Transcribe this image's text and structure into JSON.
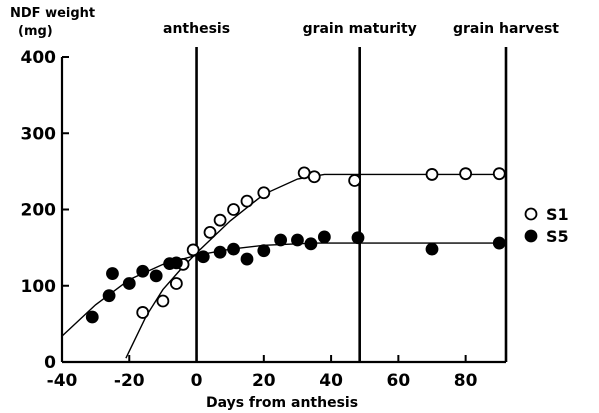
{
  "chart_data": {
    "type": "scatter",
    "ylabel_line1": "NDF weight",
    "ylabel_line2": "(mg)",
    "xlabel": "Days from anthesis",
    "xlim": [
      -40,
      92
    ],
    "ylim": [
      0,
      400
    ],
    "xticks": [
      {
        "value": -40,
        "label": "-40"
      },
      {
        "value": -20,
        "label": "-20"
      },
      {
        "value": 0,
        "label": "0"
      },
      {
        "value": 20,
        "label": "20"
      },
      {
        "value": 40,
        "label": "40"
      },
      {
        "value": 60,
        "label": "60"
      },
      {
        "value": 80,
        "label": "80"
      }
    ],
    "yticks": [
      {
        "value": 0,
        "label": "0"
      },
      {
        "value": 100,
        "label": "100"
      },
      {
        "value": 200,
        "label": "200"
      },
      {
        "value": 300,
        "label": "300"
      },
      {
        "value": 400,
        "label": "400"
      }
    ],
    "events": [
      {
        "x": 0,
        "label": "anthesis"
      },
      {
        "x": 48.5,
        "label": "grain maturity"
      },
      {
        "x": 92,
        "label": "grain harvest"
      }
    ],
    "series": [
      {
        "name": "S1",
        "marker": "open-circle",
        "points": [
          {
            "x": -16,
            "y": 65
          },
          {
            "x": -10,
            "y": 80
          },
          {
            "x": -6,
            "y": 103
          },
          {
            "x": -4,
            "y": 128
          },
          {
            "x": -1,
            "y": 147
          },
          {
            "x": 4,
            "y": 170
          },
          {
            "x": 7,
            "y": 186
          },
          {
            "x": 11,
            "y": 200
          },
          {
            "x": 15,
            "y": 211
          },
          {
            "x": 20,
            "y": 222
          },
          {
            "x": 32,
            "y": 248
          },
          {
            "x": 35,
            "y": 243
          },
          {
            "x": 47,
            "y": 238
          },
          {
            "x": 70,
            "y": 246
          },
          {
            "x": 80,
            "y": 247
          },
          {
            "x": 90,
            "y": 247
          }
        ],
        "fit": [
          {
            "x": -21,
            "y": 5
          },
          {
            "x": -15,
            "y": 60
          },
          {
            "x": -10,
            "y": 95
          },
          {
            "x": -5,
            "y": 120
          },
          {
            "x": 0,
            "y": 143
          },
          {
            "x": 10,
            "y": 185
          },
          {
            "x": 20,
            "y": 220
          },
          {
            "x": 30,
            "y": 240
          },
          {
            "x": 38,
            "y": 246
          },
          {
            "x": 50,
            "y": 246
          },
          {
            "x": 92,
            "y": 246
          }
        ]
      },
      {
        "name": "S5",
        "marker": "filled-circle",
        "points": [
          {
            "x": -31,
            "y": 59
          },
          {
            "x": -26,
            "y": 87
          },
          {
            "x": -25,
            "y": 116
          },
          {
            "x": -20,
            "y": 103
          },
          {
            "x": -16,
            "y": 119
          },
          {
            "x": -12,
            "y": 113
          },
          {
            "x": -8,
            "y": 129
          },
          {
            "x": -6,
            "y": 130
          },
          {
            "x": 2,
            "y": 138
          },
          {
            "x": 7,
            "y": 144
          },
          {
            "x": 11,
            "y": 148
          },
          {
            "x": 15,
            "y": 135
          },
          {
            "x": 20,
            "y": 146
          },
          {
            "x": 25,
            "y": 160
          },
          {
            "x": 30,
            "y": 160
          },
          {
            "x": 34,
            "y": 155
          },
          {
            "x": 38,
            "y": 164
          },
          {
            "x": 48,
            "y": 163
          },
          {
            "x": 70,
            "y": 148
          },
          {
            "x": 90,
            "y": 156
          }
        ],
        "fit": [
          {
            "x": -40,
            "y": 34
          },
          {
            "x": -30,
            "y": 75
          },
          {
            "x": -20,
            "y": 108
          },
          {
            "x": -10,
            "y": 128
          },
          {
            "x": 0,
            "y": 140
          },
          {
            "x": 10,
            "y": 148
          },
          {
            "x": 20,
            "y": 153
          },
          {
            "x": 35,
            "y": 156
          },
          {
            "x": 50,
            "y": 156
          },
          {
            "x": 92,
            "y": 156
          }
        ]
      }
    ]
  }
}
